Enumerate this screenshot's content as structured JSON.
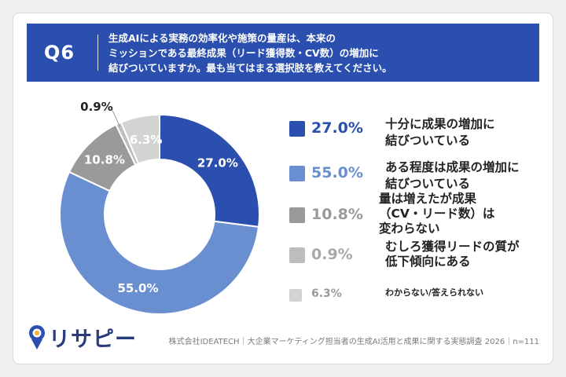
{
  "question": {
    "label": "Q6",
    "lines": [
      "生成AIによる実務の効率化や施策の量産は、本来の",
      "ミッションである最終成果（リード獲得数・CV数）の増加に",
      "結びついていますか。最も当てはまる選択肢を教えてください。"
    ]
  },
  "chart_data": {
    "type": "pie",
    "variant": "donut",
    "slices": [
      {
        "label_lines": [
          "十分に成果の増加に",
          "結びついている"
        ],
        "value": 27.0,
        "display": "27.0%",
        "color": "#2b4fae"
      },
      {
        "label_lines": [
          "ある程度は成果の増加に",
          "結びついている"
        ],
        "value": 55.0,
        "display": "55.0%",
        "color": "#6a8fd0"
      },
      {
        "label_lines": [
          "量は増えたが成果",
          "（CV・リード数）は",
          "変わらない"
        ],
        "value": 10.8,
        "display": "10.8%",
        "color": "#9a9a9a"
      },
      {
        "label_lines": [
          "むしろ獲得リードの質が",
          "低下傾向にある"
        ],
        "value": 0.9,
        "display": "0.9%",
        "color": "#bdbdbd"
      },
      {
        "label_lines": [
          "わからない/答えられない"
        ],
        "value": 6.3,
        "display": "6.3%",
        "color": "#d3d3d3"
      }
    ]
  },
  "branding": {
    "logo_text": "リサピー"
  },
  "footer": {
    "text": "株式会社IDEATECH｜大企業マーケティング担当者の生成AI活用と成果に関する実態調査 2026｜n=111"
  }
}
